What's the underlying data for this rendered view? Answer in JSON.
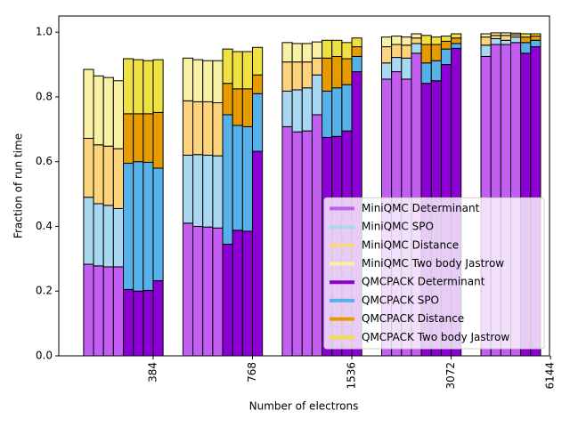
{
  "chart_data": {
    "type": "stacked_bar",
    "xlabel": "Number of electrons",
    "ylabel": "Fraction of run time",
    "categories": [
      null,
      null,
      null,
      null,
      null,
      null,
      null,
      "384",
      null,
      null,
      null,
      null,
      null,
      null,
      null,
      "768",
      null,
      null,
      null,
      null,
      null,
      null,
      null,
      "1536",
      null,
      null,
      null,
      null,
      null,
      null,
      null,
      "3072",
      null,
      null,
      null,
      null,
      null,
      null,
      null,
      "6144"
    ],
    "ylim": [
      0,
      1.05
    ],
    "yticks": [
      {
        "value": 0,
        "label": "0.0"
      },
      0.2,
      0.4,
      0.6,
      0.8,
      {
        "value": 1,
        "label": "1.0"
      }
    ],
    "legend": "lower right",
    "series": [
      {
        "name": "MiniQMC Determinant",
        "color": "#c45ef2",
        "values": [
          0.283,
          0.278,
          0.275,
          0.275,
          null,
          null,
          null,
          null,
          0.41,
          0.4,
          0.398,
          0.395,
          null,
          null,
          null,
          null,
          0.708,
          0.692,
          0.695,
          0.745,
          null,
          null,
          null,
          null,
          0.855,
          0.878,
          0.855,
          0.935,
          null,
          null,
          null,
          null,
          0.925,
          0.962,
          0.962,
          0.968,
          null,
          null,
          null,
          null
        ]
      },
      {
        "name": "MiniQMC SPO",
        "color": "#a8d8f2",
        "values": [
          0.207,
          0.192,
          0.19,
          0.18,
          null,
          null,
          null,
          null,
          0.21,
          0.222,
          0.222,
          0.223,
          null,
          null,
          null,
          null,
          0.11,
          0.13,
          0.133,
          0.123,
          null,
          null,
          null,
          null,
          0.05,
          0.044,
          0.065,
          0.03,
          null,
          null,
          null,
          null,
          0.035,
          0.018,
          0.013,
          0.017,
          null,
          null,
          null,
          null
        ]
      },
      {
        "name": "MiniQMC Distance",
        "color": "#fdd47c",
        "values": [
          0.182,
          0.182,
          0.183,
          0.185,
          null,
          null,
          null,
          null,
          0.168,
          0.163,
          0.165,
          0.164,
          null,
          null,
          null,
          null,
          0.09,
          0.086,
          0.08,
          0.052,
          null,
          null,
          null,
          null,
          0.05,
          0.04,
          0.04,
          0.017,
          null,
          null,
          null,
          null,
          0.025,
          0.01,
          0.015,
          0.007,
          null,
          null,
          null,
          null
        ]
      },
      {
        "name": "MiniQMC Two body Jastrow",
        "color": "#f8f0a2",
        "values": [
          0.213,
          0.213,
          0.212,
          0.21,
          null,
          null,
          null,
          null,
          0.132,
          0.13,
          0.127,
          0.13,
          null,
          null,
          null,
          null,
          0.06,
          0.057,
          0.057,
          0.05,
          null,
          null,
          null,
          null,
          0.03,
          0.026,
          0.025,
          0.013,
          null,
          null,
          null,
          null,
          0.01,
          0.008,
          0.008,
          0.005,
          null,
          null,
          null,
          null
        ]
      },
      {
        "name": "QMCPACK Determinant",
        "color": "#8c00d6",
        "values": [
          null,
          null,
          null,
          null,
          0.205,
          0.2,
          0.202,
          0.232,
          null,
          null,
          null,
          null,
          0.345,
          0.388,
          0.385,
          0.632,
          null,
          null,
          null,
          null,
          0.675,
          0.678,
          0.695,
          0.878,
          null,
          null,
          null,
          null,
          0.842,
          0.85,
          0.9,
          0.95,
          null,
          null,
          null,
          null,
          0.935,
          0.955,
          null,
          null
        ]
      },
      {
        "name": "QMCPACK SPO",
        "color": "#56b1e8",
        "values": [
          null,
          null,
          null,
          null,
          0.39,
          0.4,
          0.396,
          0.348,
          null,
          null,
          null,
          null,
          0.4,
          0.324,
          0.323,
          0.178,
          null,
          null,
          null,
          null,
          0.143,
          0.15,
          0.143,
          0.047,
          null,
          null,
          null,
          null,
          0.063,
          0.062,
          0.048,
          0.015,
          null,
          null,
          null,
          null,
          0.033,
          0.02,
          null,
          null
        ]
      },
      {
        "name": "QMCPACK Distance",
        "color": "#e69c00",
        "values": [
          null,
          null,
          null,
          null,
          0.153,
          0.148,
          0.15,
          0.172,
          null,
          null,
          null,
          null,
          0.097,
          0.113,
          0.117,
          0.058,
          null,
          null,
          null,
          null,
          0.102,
          0.097,
          0.08,
          0.03,
          null,
          null,
          null,
          null,
          0.057,
          0.05,
          0.024,
          0.017,
          null,
          null,
          null,
          null,
          0.017,
          0.013,
          null,
          null
        ]
      },
      {
        "name": "QMCPACK Two body Jastrow",
        "color": "#f0e142",
        "values": [
          null,
          null,
          null,
          null,
          0.17,
          0.167,
          0.164,
          0.163,
          null,
          null,
          null,
          null,
          0.106,
          0.115,
          0.115,
          0.085,
          null,
          null,
          null,
          null,
          0.055,
          0.05,
          0.05,
          0.027,
          null,
          null,
          null,
          null,
          0.028,
          0.023,
          0.016,
          0.013,
          null,
          null,
          null,
          null,
          0.01,
          0.007,
          null,
          null
        ]
      }
    ]
  }
}
